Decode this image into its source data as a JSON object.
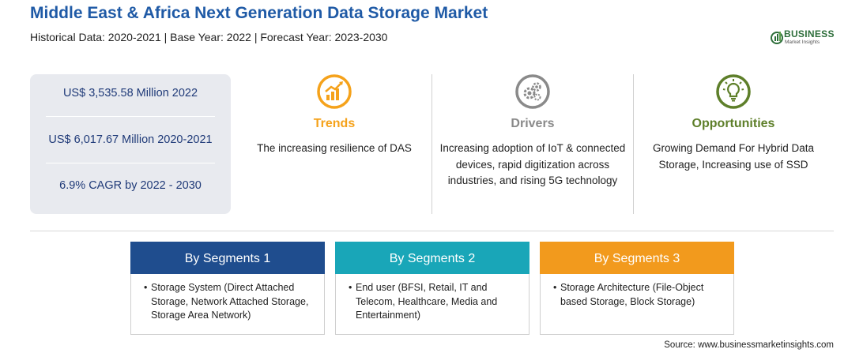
{
  "header": {
    "title": "Middle East & Africa Next Generation Data Storage Market",
    "subtitle": "Historical Data: 2020-2021 | Base Year: 2022 | Forecast Year: 2023-2030"
  },
  "logo": {
    "main": "BUSINESS",
    "sub": "Market Insights"
  },
  "stats": [
    "US$ 3,535.58 Million 2022",
    "US$ 6,017.67 Million 2020-2021",
    "6.9% CAGR by 2022 - 2030"
  ],
  "columns": [
    {
      "title": "Trends",
      "icon": "chart-growth-icon",
      "color": "#f5a21b",
      "text": "The increasing resilience of DAS"
    },
    {
      "title": "Drivers",
      "icon": "gears-icon",
      "color": "#8a8a8a",
      "text": "Increasing adoption of IoT & connected devices, rapid digitization across industries, and rising 5G technology"
    },
    {
      "title": "Opportunities",
      "icon": "lightbulb-icon",
      "color": "#5e7f2a",
      "text": "Growing Demand For Hybrid Data Storage, Increasing use of SSD"
    }
  ],
  "segments": [
    {
      "title": "By Segments 1",
      "color": "#1f4d8e",
      "items": [
        "Storage System (Direct Attached Storage, Network Attached Storage, Storage Area Network)"
      ]
    },
    {
      "title": "By Segments 2",
      "color": "#19a6b8",
      "items": [
        "End user (BFSI, Retail, IT and Telecom, Healthcare, Media and Entertainment)"
      ]
    },
    {
      "title": "By Segments 3",
      "color": "#f29a1d",
      "items": [
        "Storage Architecture (File-Object based Storage, Block Storage)"
      ]
    }
  ],
  "source": "Source: www.businessmarketinsights.com"
}
